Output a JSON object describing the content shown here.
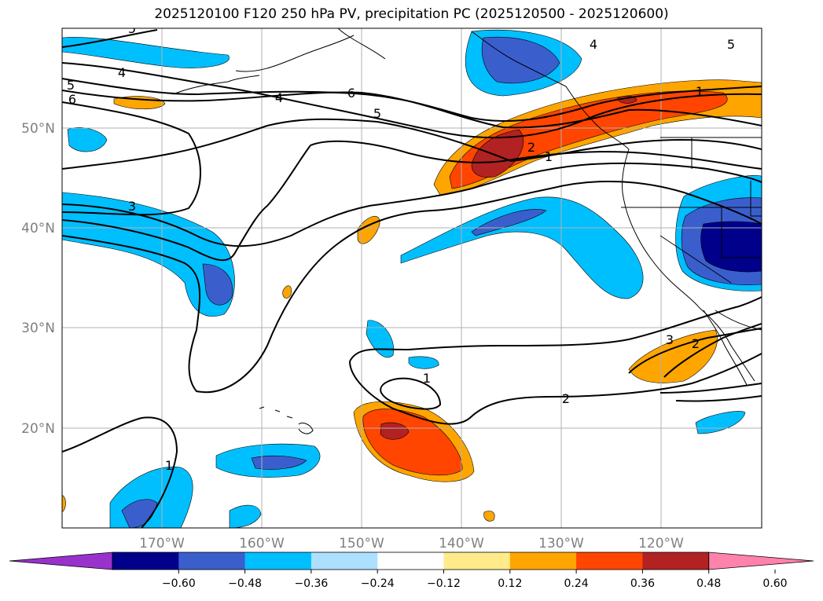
{
  "title": "2025120100 F120 250 hPa PV, precipitation PC (2025120500 - 2025120600)",
  "map": {
    "lon_range": [
      -180,
      -110
    ],
    "lat_range": [
      10,
      60
    ],
    "lon_ticks": [
      {
        "lon": -170,
        "label": "170°W"
      },
      {
        "lon": -160,
        "label": "160°W"
      },
      {
        "lon": -150,
        "label": "150°W"
      },
      {
        "lon": -140,
        "label": "140°W"
      },
      {
        "lon": -130,
        "label": "130°W"
      },
      {
        "lon": -120,
        "label": "120°W"
      }
    ],
    "lat_ticks": [
      {
        "lat": 50,
        "label": "50°N"
      },
      {
        "lat": 40,
        "label": "40°N"
      },
      {
        "lat": 30,
        "label": "30°N"
      },
      {
        "lat": 20,
        "label": "20°N"
      }
    ],
    "grid": true,
    "contour_labels": [
      "5",
      "4",
      "5",
      "6",
      "4",
      "6",
      "5",
      "3",
      "2",
      "1",
      "4",
      "5",
      "1",
      "2",
      "3",
      "2",
      "1",
      "1"
    ]
  },
  "colorbar": {
    "ticks": [
      "−0.60",
      "−0.48",
      "−0.36",
      "−0.24",
      "−0.12",
      "0.12",
      "0.24",
      "0.36",
      "0.48",
      "0.60"
    ],
    "colors": [
      "#9932CC",
      "#00008B",
      "#3A5FCD",
      "#00BFFF",
      "#ADDFFF",
      "#FFFFFF",
      "#FFEB8A",
      "#FFA500",
      "#FF4500",
      "#B22222",
      "#FF82AB"
    ],
    "extend": "both"
  }
}
